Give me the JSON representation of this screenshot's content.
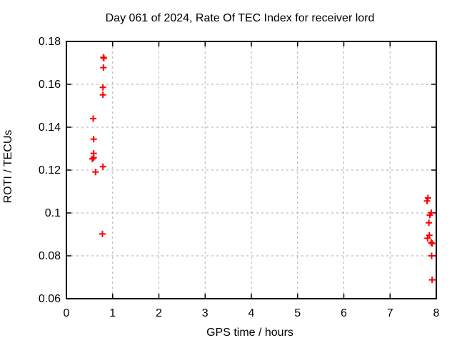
{
  "chart_data": {
    "type": "scatter",
    "title": "Day 061 of 2024, Rate Of TEC Index for receiver lord",
    "xlabel": "GPS time / hours",
    "ylabel": "ROTI / TECUs",
    "xlim": [
      0,
      8
    ],
    "ylim": [
      0.06,
      0.18
    ],
    "grid": true,
    "legend": "none",
    "x_ticks": [
      {
        "value": 0,
        "label": "0"
      },
      {
        "value": 1,
        "label": "1"
      },
      {
        "value": 2,
        "label": "2"
      },
      {
        "value": 3,
        "label": "3"
      },
      {
        "value": 4,
        "label": "4"
      },
      {
        "value": 5,
        "label": "5"
      },
      {
        "value": 6,
        "label": "6"
      },
      {
        "value": 7,
        "label": "7"
      },
      {
        "value": 8,
        "label": "8"
      }
    ],
    "y_ticks": [
      {
        "value": 0.06,
        "label": "0.06"
      },
      {
        "value": 0.08,
        "label": "0.08"
      },
      {
        "value": 0.1,
        "label": "0.1"
      },
      {
        "value": 0.12,
        "label": "0.12"
      },
      {
        "value": 0.14,
        "label": "0.14"
      },
      {
        "value": 0.16,
        "label": "0.16"
      },
      {
        "value": 0.18,
        "label": "0.18"
      }
    ],
    "series": [
      {
        "name": "ROTI",
        "marker": "plus",
        "color": "#ff0000",
        "points": [
          [
            0.8,
            0.1726
          ],
          [
            0.81,
            0.1722
          ],
          [
            0.8,
            0.1678
          ],
          [
            0.79,
            0.1586
          ],
          [
            0.79,
            0.1551
          ],
          [
            0.58,
            0.144
          ],
          [
            0.59,
            0.1344
          ],
          [
            0.59,
            0.1278
          ],
          [
            0.59,
            0.1258
          ],
          [
            0.56,
            0.1252
          ],
          [
            0.79,
            0.1216
          ],
          [
            0.63,
            0.1191
          ],
          [
            0.78,
            0.0902
          ],
          [
            7.82,
            0.107
          ],
          [
            7.8,
            0.1056
          ],
          [
            7.89,
            0.1001
          ],
          [
            7.86,
            0.099
          ],
          [
            7.84,
            0.0954
          ],
          [
            7.85,
            0.0896
          ],
          [
            7.81,
            0.0882
          ],
          [
            7.89,
            0.0862
          ],
          [
            7.91,
            0.0858
          ],
          [
            7.9,
            0.08
          ],
          [
            7.91,
            0.0688
          ]
        ]
      }
    ],
    "colors": {
      "marker": "#ff0000",
      "grid": "#aaaaaa",
      "border": "#000000",
      "background": "#ffffff",
      "text": "#000000"
    }
  }
}
